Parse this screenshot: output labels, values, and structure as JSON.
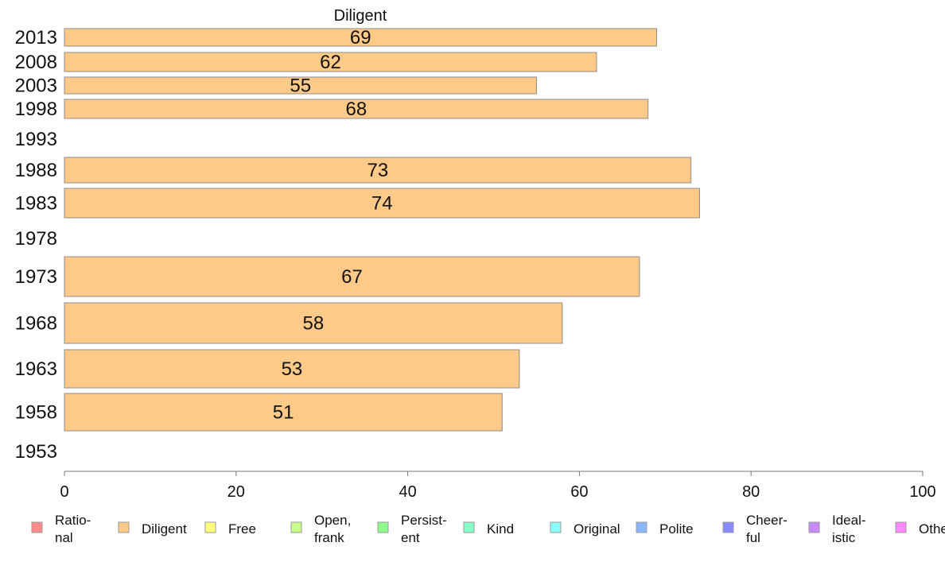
{
  "chart_data": {
    "type": "bar",
    "orientation": "horizontal",
    "title": "Diligent",
    "xlabel": "",
    "ylabel": "",
    "xlim": [
      0,
      100
    ],
    "x_ticks": [
      0,
      20,
      40,
      60,
      80,
      100
    ],
    "grid": false,
    "categories": [
      "2013",
      "2008",
      "2003",
      "1998",
      "1993",
      "1988",
      "1983",
      "1978",
      "1973",
      "1968",
      "1963",
      "1958",
      "1953"
    ],
    "series": [
      {
        "name": "Diligent",
        "color": "#ffc987",
        "values": [
          69,
          62,
          55,
          68,
          null,
          73,
          74,
          null,
          67,
          58,
          53,
          51,
          null
        ],
        "value_labels": [
          "69",
          "62",
          "55",
          "68",
          "",
          "73",
          "74",
          "",
          "67",
          "58",
          "53",
          "51",
          ""
        ]
      }
    ],
    "legend_position": "bottom",
    "legend": [
      {
        "label": "Ratio-\nnal",
        "color": "#ff8a8a"
      },
      {
        "label": "Diligent",
        "color": "#ffc987"
      },
      {
        "label": "Free",
        "color": "#ffff80"
      },
      {
        "label": "Open,\nfrank",
        "color": "#c8ff8a"
      },
      {
        "label": "Persist-\nent",
        "color": "#8aff8a"
      },
      {
        "label": "Kind",
        "color": "#8affc8"
      },
      {
        "label": "Original",
        "color": "#8affff"
      },
      {
        "label": "Polite",
        "color": "#8ab8ff"
      },
      {
        "label": "Cheer-\nful",
        "color": "#8a8aff"
      },
      {
        "label": "Ideal-\nistic",
        "color": "#c88aff"
      },
      {
        "label": "Other",
        "color": "#ff8aff"
      }
    ]
  }
}
